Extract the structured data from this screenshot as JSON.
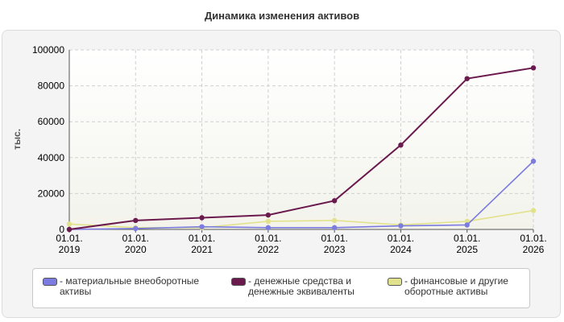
{
  "chart_data": {
    "type": "line",
    "title": "Динамика изменения активов",
    "ylabel": "тыс.",
    "xlabel": "",
    "ylim": [
      0,
      100000
    ],
    "yticks": [
      "100000",
      "80000",
      "60000",
      "40000",
      "20000",
      "0"
    ],
    "categories": [
      "01.01.\n2019",
      "01.01.\n2020",
      "01.01.\n2021",
      "01.01.\n2022",
      "01.01.\n2023",
      "01.01.\n2024",
      "01.01.\n2025",
      "01.01.\n2026"
    ],
    "grid": true,
    "legend_position": "bottom",
    "series": [
      {
        "name": "- материальные внеоборотные\nактивы",
        "color": "#7b7be0",
        "values": [
          0,
          500,
          1500,
          1000,
          1000,
          2000,
          2500,
          38000
        ]
      },
      {
        "name": "- денежные средства и\nденежные эквиваленты",
        "color": "#6b1a4e",
        "values": [
          0,
          5000,
          6500,
          8000,
          16000,
          47000,
          84000,
          90000
        ]
      },
      {
        "name": "- финансовые и другие\nоборотные активы",
        "color": "#e2e28c",
        "values": [
          3000,
          1000,
          1000,
          4500,
          5000,
          2500,
          4500,
          10500
        ]
      }
    ]
  }
}
